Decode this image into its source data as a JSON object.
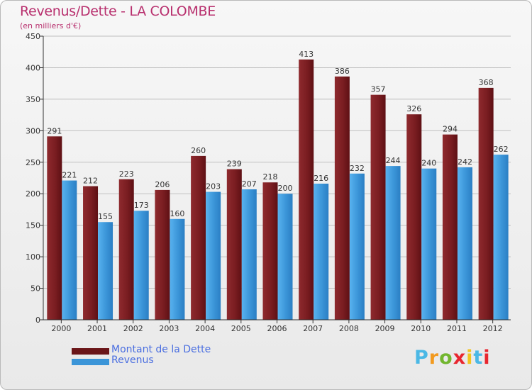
{
  "title": "Revenus/Dette - LA COLOMBE",
  "subtitle": "(en milliers d'€)",
  "logo": {
    "letters": [
      "P",
      "r",
      "o",
      "x",
      "i",
      "t",
      "i"
    ],
    "colors": [
      "#4bb8e5",
      "#f29a1f",
      "#72b62f",
      "#e8262f",
      "#f2c41f",
      "#4bb8e5",
      "#e8262f"
    ]
  },
  "colors": {
    "dette": "#7a1d21",
    "revenus": "#3b95d8",
    "title": "#b8306e"
  },
  "chart_data": {
    "type": "bar",
    "title": "Revenus/Dette - LA COLOMBE",
    "ylabel": "(en milliers d'€)",
    "xlabel": "",
    "categories": [
      "2000",
      "2001",
      "2002",
      "2003",
      "2004",
      "2005",
      "2006",
      "2007",
      "2008",
      "2009",
      "2010",
      "2011",
      "2012"
    ],
    "series": [
      {
        "name": "Montant de la Dette",
        "values": [
          291,
          212,
          223,
          206,
          260,
          239,
          218,
          413,
          386,
          357,
          326,
          294,
          368
        ]
      },
      {
        "name": "Revenus",
        "values": [
          221,
          155,
          173,
          160,
          203,
          207,
          200,
          216,
          232,
          244,
          240,
          242,
          262
        ]
      }
    ],
    "ylim": [
      0,
      450
    ],
    "yticks": [
      0,
      50,
      100,
      150,
      200,
      250,
      300,
      350,
      400,
      450
    ],
    "grid": true,
    "legend": "bottom-left"
  }
}
